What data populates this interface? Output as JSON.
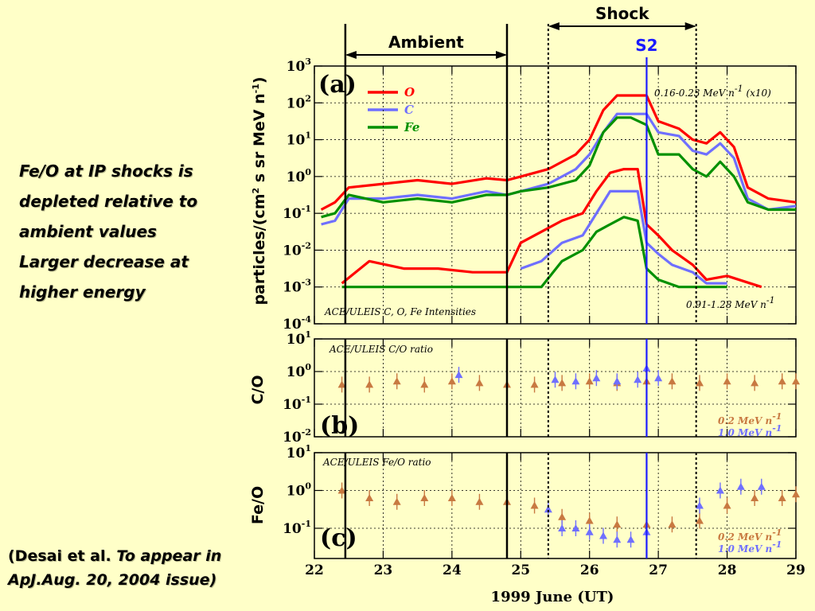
{
  "slide": {
    "left_text": [
      "Fe/O at IP shocks is",
      "depleted relative to",
      "ambient values",
      "",
      "Larger decrease at",
      "higher energy"
    ],
    "citation_prefix": "(Desai et al. ",
    "citation_italic_1": "To appear in",
    "citation_italic_2": "ApJ.Aug. 20, 2004 issue)"
  },
  "colors": {
    "background": "#ffffc8",
    "oxygen": "#ff0000",
    "carbon": "#6f6fff",
    "iron": "#009000",
    "ratio_low": "#c87941",
    "ratio_high": "#6f6fff",
    "s2_line": "#1a1aff"
  },
  "chart_data": {
    "type": "line",
    "xlabel": "1999 June (UT)",
    "xlim": [
      22,
      29
    ],
    "x_ticks": [
      "22",
      "23",
      "24",
      "25",
      "26",
      "27",
      "28",
      "29"
    ],
    "annotations": {
      "ambient": {
        "label": "Ambient",
        "x_start": 22.45,
        "x_end": 24.8
      },
      "shock": {
        "label": "Shock",
        "x_start": 25.4,
        "x_end": 27.55
      },
      "s2": {
        "label": "S2",
        "x": 26.83
      }
    },
    "panels": [
      {
        "id": "a",
        "letter": "(a)",
        "ylabel": "particles/(cm",
        "ylabel_sup": "2",
        "ylabel_tail": " s sr MeV n",
        "ylabel_sup2": "-1",
        "ylabel_end": ")",
        "ylim_log": [
          -4,
          3
        ],
        "y_ticks": [
          {
            "base": "10",
            "exp": "3",
            "v": 3
          },
          {
            "base": "10",
            "exp": "2",
            "v": 2
          },
          {
            "base": "10",
            "exp": "1",
            "v": 1
          },
          {
            "base": "10",
            "exp": "0",
            "v": 0
          },
          {
            "base": "10",
            "exp": "-1",
            "v": -1
          },
          {
            "base": "10",
            "exp": "-2",
            "v": -2
          },
          {
            "base": "10",
            "exp": "-3",
            "v": -3
          },
          {
            "base": "10",
            "exp": "-4",
            "v": -4
          }
        ],
        "title_text": "ACE/ULEIS C, O, Fe Intensities",
        "energy_high": "0.16-0.23 MeV n",
        "energy_high_sup": "-1",
        "energy_high_tail": " (x10)",
        "energy_low": "0.91-1.28 MeV n",
        "energy_low_sup": "-1",
        "legend": [
          "O",
          "C",
          "Fe"
        ],
        "series": [
          {
            "name": "O",
            "band": "high",
            "x": [
              22.1,
              22.3,
              22.5,
              23.0,
              23.5,
              24.0,
              24.5,
              24.8,
              25.0,
              25.4,
              25.8,
              26.0,
              26.2,
              26.4,
              26.6,
              26.83,
              27.0,
              27.3,
              27.5,
              27.7,
              27.9,
              28.1,
              28.3,
              28.6,
              29.0
            ],
            "y": [
              -0.9,
              -0.7,
              -0.3,
              -0.2,
              -0.1,
              -0.2,
              -0.05,
              -0.1,
              0.0,
              0.2,
              0.6,
              1.0,
              1.8,
              2.2,
              2.2,
              2.2,
              1.5,
              1.3,
              1.0,
              0.9,
              1.2,
              0.8,
              -0.3,
              -0.6,
              -0.7
            ]
          },
          {
            "name": "C",
            "band": "high",
            "x": [
              22.1,
              22.3,
              22.5,
              23.0,
              23.5,
              24.0,
              24.5,
              24.8,
              25.0,
              25.4,
              25.8,
              26.0,
              26.2,
              26.4,
              26.6,
              26.83,
              27.0,
              27.3,
              27.5,
              27.7,
              27.9,
              28.1,
              28.3,
              28.6,
              29.0
            ],
            "y": [
              -1.3,
              -1.2,
              -0.6,
              -0.6,
              -0.5,
              -0.6,
              -0.4,
              -0.5,
              -0.4,
              -0.2,
              0.2,
              0.6,
              1.2,
              1.7,
              1.7,
              1.7,
              1.2,
              1.1,
              0.7,
              0.6,
              0.9,
              0.5,
              -0.6,
              -0.9,
              -0.8
            ]
          },
          {
            "name": "Fe",
            "band": "high",
            "x": [
              22.1,
              22.3,
              22.5,
              23.0,
              23.5,
              24.0,
              24.5,
              24.8,
              25.0,
              25.4,
              25.8,
              26.0,
              26.2,
              26.4,
              26.6,
              26.83,
              27.0,
              27.3,
              27.5,
              27.7,
              27.9,
              28.1,
              28.3,
              28.6,
              29.0
            ],
            "y": [
              -1.1,
              -1.0,
              -0.5,
              -0.7,
              -0.6,
              -0.7,
              -0.5,
              -0.5,
              -0.4,
              -0.3,
              -0.1,
              0.3,
              1.2,
              1.6,
              1.6,
              1.4,
              0.6,
              0.6,
              0.2,
              0.0,
              0.4,
              0.0,
              -0.7,
              -0.9,
              -0.9
            ]
          },
          {
            "name": "O",
            "band": "low",
            "x": [
              22.4,
              22.8,
              23.3,
              23.8,
              24.3,
              24.8,
              25.0,
              25.3,
              25.6,
              25.9,
              26.1,
              26.3,
              26.5,
              26.7,
              26.83,
              27.0,
              27.2,
              27.5,
              27.7,
              28.0,
              28.5
            ],
            "y": [
              -2.9,
              -2.3,
              -2.5,
              -2.5,
              -2.6,
              -2.6,
              -1.8,
              -1.5,
              -1.2,
              -1.0,
              -0.4,
              0.1,
              0.2,
              0.2,
              -1.3,
              -1.6,
              -2.0,
              -2.4,
              -2.8,
              -2.7,
              -3.0
            ]
          },
          {
            "name": "C",
            "band": "low",
            "x": [
              25.0,
              25.3,
              25.6,
              25.9,
              26.1,
              26.3,
              26.5,
              26.7,
              26.83,
              27.0,
              27.2,
              27.5,
              27.7,
              28.0
            ],
            "y": [
              -2.5,
              -2.3,
              -1.8,
              -1.6,
              -1.0,
              -0.4,
              -0.4,
              -0.4,
              -1.8,
              -2.1,
              -2.4,
              -2.6,
              -2.9,
              -2.9
            ]
          },
          {
            "name": "Fe",
            "band": "low",
            "x": [
              22.4,
              22.8,
              23.3,
              23.8,
              24.3,
              24.8,
              25.3,
              25.6,
              25.9,
              26.1,
              26.3,
              26.5,
              26.7,
              26.83,
              27.0,
              27.3,
              27.6,
              28.0
            ],
            "y": [
              -3.0,
              -3.0,
              -3.0,
              -3.0,
              -3.0,
              -3.0,
              -3.0,
              -2.3,
              -2.0,
              -1.5,
              -1.3,
              -1.1,
              -1.2,
              -2.5,
              -2.8,
              -3.0,
              -3.0,
              -3.0
            ]
          }
        ]
      },
      {
        "id": "b",
        "letter": "(b)",
        "ylabel": "C/O",
        "ylim_log": [
          -2,
          1
        ],
        "y_ticks": [
          {
            "base": "10",
            "exp": "1",
            "v": 1
          },
          {
            "base": "10",
            "exp": "0",
            "v": 0
          },
          {
            "base": "10",
            "exp": "-1",
            "v": -1
          },
          {
            "base": "10",
            "exp": "-2",
            "v": -2
          }
        ],
        "title_text": "ACE/ULEIS C/O ratio",
        "legend_low": "0.2 MeV n",
        "legend_low_sup": "-1",
        "legend_high": "1.0 MeV n",
        "legend_high_sup": "-1",
        "series": [
          {
            "name": "0.2 MeV n-1",
            "x": [
              22.4,
              22.8,
              23.2,
              23.6,
              24.0,
              24.4,
              24.8,
              25.2,
              25.6,
              26.0,
              26.4,
              26.83,
              27.2,
              27.6,
              28.0,
              28.4,
              28.8,
              29.0
            ],
            "y": [
              -0.4,
              -0.4,
              -0.3,
              -0.4,
              -0.3,
              -0.35,
              -0.4,
              -0.4,
              -0.35,
              -0.3,
              -0.35,
              -0.3,
              -0.3,
              -0.35,
              -0.3,
              -0.35,
              -0.3,
              -0.3
            ]
          },
          {
            "name": "1.0 MeV n-1",
            "x": [
              24.1,
              25.5,
              25.8,
              26.1,
              26.4,
              26.7,
              26.83,
              27.0
            ],
            "y": [
              -0.1,
              -0.25,
              -0.3,
              -0.2,
              -0.3,
              -0.25,
              0.1,
              -0.2
            ]
          }
        ]
      },
      {
        "id": "c",
        "letter": "(c)",
        "ylabel": "Fe/O",
        "ylim_log": [
          -1.8,
          1
        ],
        "y_ticks": [
          {
            "base": "10",
            "exp": "1",
            "v": 1
          },
          {
            "base": "10",
            "exp": "0",
            "v": 0
          },
          {
            "base": "10",
            "exp": "-1",
            "v": -1
          }
        ],
        "title_text": "ACE/ULEIS Fe/O ratio",
        "legend_low": "0.2 MeV n",
        "legend_low_sup": "-1",
        "legend_high": "1.0 MeV n",
        "legend_high_sup": "-1",
        "series": [
          {
            "name": "0.2 MeV n-1",
            "x": [
              22.4,
              22.8,
              23.2,
              23.6,
              24.0,
              24.4,
              24.8,
              25.2,
              25.6,
              26.0,
              26.4,
              26.83,
              27.2,
              27.6,
              28.0,
              28.4,
              28.8,
              29.0
            ],
            "y": [
              0.0,
              -0.2,
              -0.3,
              -0.2,
              -0.2,
              -0.3,
              -0.3,
              -0.4,
              -0.7,
              -0.8,
              -0.9,
              -0.9,
              -0.9,
              -0.8,
              -0.4,
              -0.2,
              -0.2,
              -0.1
            ]
          },
          {
            "name": "1.0 MeV n-1",
            "x": [
              25.4,
              25.6,
              25.8,
              26.0,
              26.2,
              26.4,
              26.6,
              26.83,
              27.6,
              27.9,
              28.2,
              28.5
            ],
            "y": [
              -0.5,
              -1.0,
              -1.0,
              -1.1,
              -1.2,
              -1.3,
              -1.3,
              -1.1,
              -0.4,
              0.0,
              0.1,
              0.1
            ]
          }
        ]
      }
    ]
  }
}
